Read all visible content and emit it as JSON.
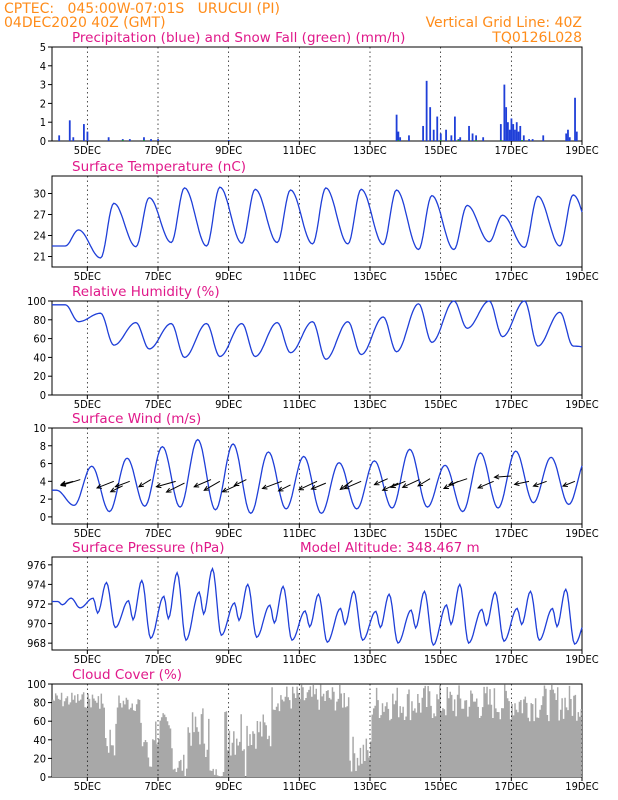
{
  "header": {
    "line1_left": "CPTEC:   045:00W-07:01S   URUCUI (PI)",
    "line2_left": "04DEC2020 40Z (GMT)",
    "line1_right": "Vertical Grid Line: 40Z",
    "line2_right": "TQ0126L028"
  },
  "colors": {
    "header": "#ff8c1a",
    "panel_title": "#e0198a",
    "series_line": "#1f3fd8",
    "precip": "#1f3fd8",
    "snow": "#1a9a2a",
    "cloud": "#a8a8a8",
    "wind_arrow": "#000000"
  },
  "x_axis": {
    "tick_labels": [
      "5DEC",
      "7DEC",
      "9DEC",
      "11DEC",
      "13DEC",
      "15DEC",
      "17DEC",
      "19DEC"
    ],
    "tick_days": [
      5,
      7,
      9,
      11,
      13,
      15,
      17,
      19
    ],
    "range_days": [
      4.0,
      19.0
    ]
  },
  "chart_data": [
    {
      "id": "precip",
      "type": "bar",
      "title": "Precipitation (blue) and Snow Fall (green) (mm/h)",
      "ylim": [
        0,
        5
      ],
      "yticks": [
        0,
        1,
        2,
        3,
        4,
        5
      ],
      "grid": "vertical dashed",
      "series": [
        {
          "name": "Precipitation",
          "x": [
            4.2,
            4.5,
            4.6,
            4.9,
            5.0,
            5.6,
            6.0,
            6.2,
            6.6,
            6.8,
            7.0,
            9.0,
            13.75,
            13.8,
            13.85,
            14.1,
            14.5,
            14.6,
            14.7,
            14.8,
            14.9,
            15.0,
            15.15,
            15.3,
            15.4,
            15.5,
            15.55,
            15.8,
            15.9,
            16.0,
            16.2,
            16.7,
            16.8,
            16.85,
            16.9,
            16.95,
            17.0,
            17.05,
            17.1,
            17.15,
            17.2,
            17.25,
            17.35,
            17.5,
            17.6,
            17.9,
            18.55,
            18.6,
            18.65,
            18.8,
            18.85
          ],
          "values": [
            0.3,
            1.1,
            0.2,
            0.9,
            0.5,
            0.2,
            0.1,
            0.1,
            0.2,
            0.1,
            0.1,
            0.05,
            1.4,
            0.5,
            0.2,
            0.3,
            0.8,
            3.2,
            1.8,
            0.6,
            1.3,
            0.4,
            0.6,
            0.3,
            1.3,
            0.1,
            0.2,
            0.8,
            0.4,
            0.3,
            0.2,
            0.9,
            3.0,
            1.8,
            1.0,
            0.6,
            1.2,
            0.9,
            0.6,
            1.0,
            0.5,
            0.8,
            0.3,
            0.1,
            0.1,
            0.3,
            0.4,
            0.6,
            0.2,
            2.3,
            0.5
          ]
        },
        {
          "name": "Snow Fall",
          "x": [
            6.0,
            6.6,
            13.8,
            15.0,
            15.5,
            16.0,
            16.7,
            17.3
          ],
          "values": [
            0.05,
            0.05,
            0.05,
            0.05,
            0.05,
            0.05,
            0.05,
            0.05
          ]
        }
      ]
    },
    {
      "id": "temperature",
      "type": "line",
      "title": "Surface Temperature (nC)",
      "ylim": [
        19.5,
        32.5
      ],
      "yticks": [
        21,
        24,
        27,
        30
      ],
      "peaks_hour_of_day": 18,
      "mins_hour_of_day": 9,
      "daily_max": [
        24.8,
        28.6,
        29.4,
        30.8,
        30.9,
        30.6,
        30.5,
        30.8,
        30.6,
        30.5,
        29.7,
        28.3,
        26.9,
        29.6,
        29.8,
        27.5
      ],
      "daily_min": [
        22.5,
        20.8,
        22.4,
        23.0,
        22.5,
        22.9,
        23.0,
        22.8,
        22.8,
        22.7,
        22.0,
        22.0,
        23.1,
        22.3,
        22.5,
        22.7,
        24.0
      ]
    },
    {
      "id": "humidity",
      "type": "line",
      "title": "Relative Humidity (%)",
      "ylim": [
        0,
        100
      ],
      "yticks": [
        0,
        20,
        40,
        60,
        80,
        100
      ],
      "peaks_hour_of_day": 9,
      "mins_hour_of_day": 18,
      "daily_max": [
        96,
        87,
        77,
        76,
        76,
        76,
        77,
        78,
        78,
        83,
        97,
        100,
        100,
        100,
        88
      ],
      "daily_min": [
        78,
        53,
        49,
        40,
        41,
        41,
        45,
        38,
        43,
        46,
        56,
        71,
        62,
        52,
        52,
        47
      ]
    },
    {
      "id": "wind",
      "type": "line",
      "title": "Surface Wind (m/s)",
      "ylim": [
        -0.8,
        10
      ],
      "yticks": [
        0,
        2,
        4,
        6,
        8,
        10
      ],
      "peaks_hour_of_day": 3,
      "mins_hour_of_day": 15,
      "daily_max": [
        3.0,
        5.7,
        6.6,
        7.9,
        8.7,
        8.2,
        7.3,
        6.8,
        6.1,
        6.3,
        7.6,
        5.8,
        7.2,
        7.4,
        6.7,
        6.5
      ],
      "daily_min": [
        1.3,
        0.6,
        1.2,
        1.1,
        0.8,
        0.4,
        0.9,
        0.4,
        0.9,
        1.0,
        1.1,
        0.6,
        1.0,
        1.6,
        1.4,
        1.2
      ],
      "arrows": {
        "x": [
          4.6,
          4.8,
          5.75,
          6.0,
          6.2,
          6.8,
          7.5,
          7.75,
          8.5,
          8.75,
          9.2,
          9.5,
          10.5,
          10.75,
          11.5,
          11.75,
          12.5,
          12.75,
          13.5,
          13.8,
          14.0,
          14.4,
          14.7,
          15.5,
          15.75,
          16.5,
          17.0,
          17.5,
          18.0,
          18.8
        ],
        "y": [
          4.0,
          4.2,
          4.0,
          3.5,
          4.0,
          4.2,
          4.0,
          3.8,
          4.2,
          4.0,
          3.5,
          4.2,
          4.0,
          3.6,
          4.0,
          3.8,
          4.1,
          4.0,
          4.3,
          3.8,
          4.0,
          4.2,
          4.3,
          4.0,
          4.3,
          4.0,
          4.6,
          4.0,
          4.0,
          4.0
        ],
        "dx": [
          -1.0,
          -1.6,
          -1.4,
          -1.0,
          -1.2,
          -1.0,
          -1.6,
          -1.5,
          -1.4,
          -1.3,
          -1.1,
          -1.0,
          -1.6,
          -1.0,
          -1.5,
          -1.2,
          -1.0,
          -1.4,
          -1.1,
          -1.3,
          -1.2,
          -1.4,
          -1.0,
          -1.2,
          -1.5,
          -1.3,
          -1.4,
          -1.2,
          -1.1,
          -1.0
        ],
        "dy": [
          -0.5,
          -1.0,
          -1.1,
          -1.0,
          -0.9,
          -1.2,
          -0.9,
          -1.5,
          -1.2,
          -1.5,
          -1.0,
          -1.0,
          -1.2,
          -1.0,
          -1.4,
          -1.0,
          -1.5,
          -1.2,
          -1.0,
          -1.2,
          -1.0,
          -1.3,
          -1.2,
          -1.2,
          -1.0,
          -1.1,
          -0.2,
          -0.5,
          -0.8,
          -0.8
        ]
      }
    },
    {
      "id": "pressure",
      "type": "line",
      "title": "Surface Pressure (hPa)",
      "subtitle": "Model Altitude: 348.467 m",
      "ylim": [
        967.3,
        976.8
      ],
      "yticks": [
        968,
        970,
        972,
        974,
        976
      ],
      "semi_diurnal": true,
      "primary_max": [
        972.6,
        974.2,
        974.4,
        975.2,
        975.6,
        974.0,
        973.8,
        973.0,
        973.3,
        973.0,
        973.3,
        974.0,
        973.2,
        973.3,
        973.5,
        972.3
      ],
      "primary_min": [
        971.6,
        969.6,
        968.5,
        968.3,
        968.8,
        968.6,
        968.3,
        968.1,
        968.3,
        968.0,
        967.8,
        968.0,
        968.2,
        968.3,
        967.9,
        968.0
      ]
    },
    {
      "id": "cloud",
      "type": "area",
      "title": "Cloud Cover (%)",
      "ylim": [
        0,
        100
      ],
      "yticks": [
        0,
        20,
        40,
        60,
        80,
        100
      ],
      "style": "histogram"
    }
  ]
}
